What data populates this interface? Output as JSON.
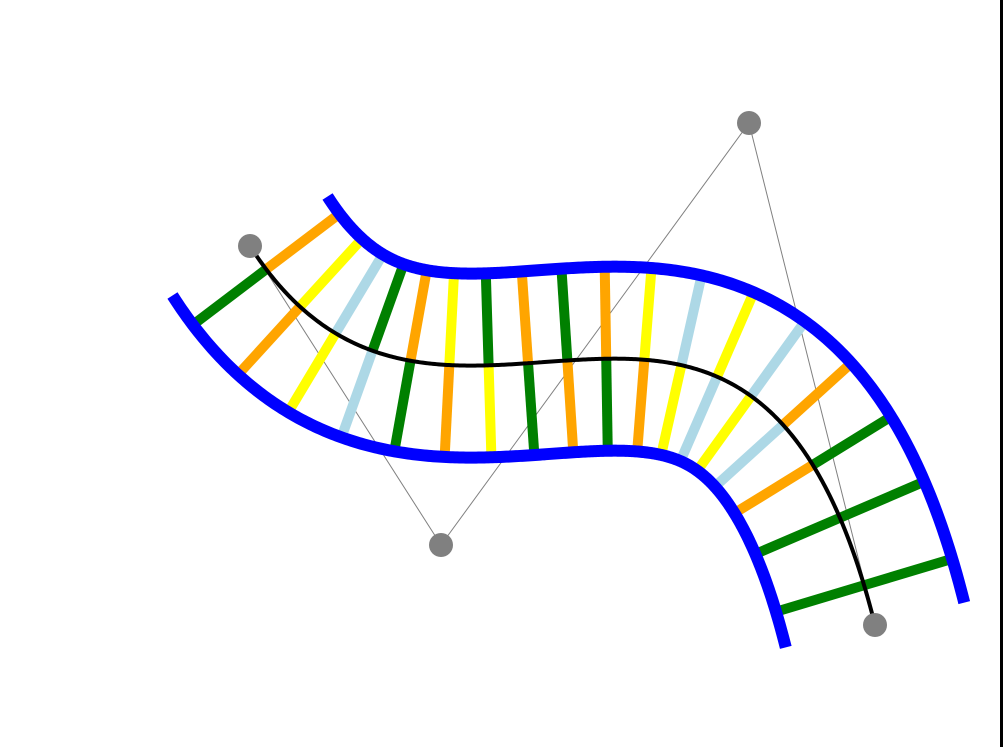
{
  "diagram": {
    "description_visible_text": "",
    "colors": {
      "background": "#ffffff",
      "rail": "#0000ff",
      "centerline": "#000000",
      "control_point": "#808080",
      "control_polygon": "#808080",
      "tie_palette": [
        "#008000",
        "#ffa500",
        "#ffff00",
        "#add8e6"
      ],
      "frame_border": "#000000"
    },
    "control_points_count": 4,
    "tie_count": 18,
    "tie_color_sequence": [
      "green",
      "orange",
      "yellow",
      "lightblue",
      "green",
      "orange",
      "yellow",
      "green",
      "orange",
      "green",
      "orange",
      "yellow",
      "lightblue",
      "yellow",
      "lightblue",
      "orange",
      "green",
      "green"
    ]
  }
}
